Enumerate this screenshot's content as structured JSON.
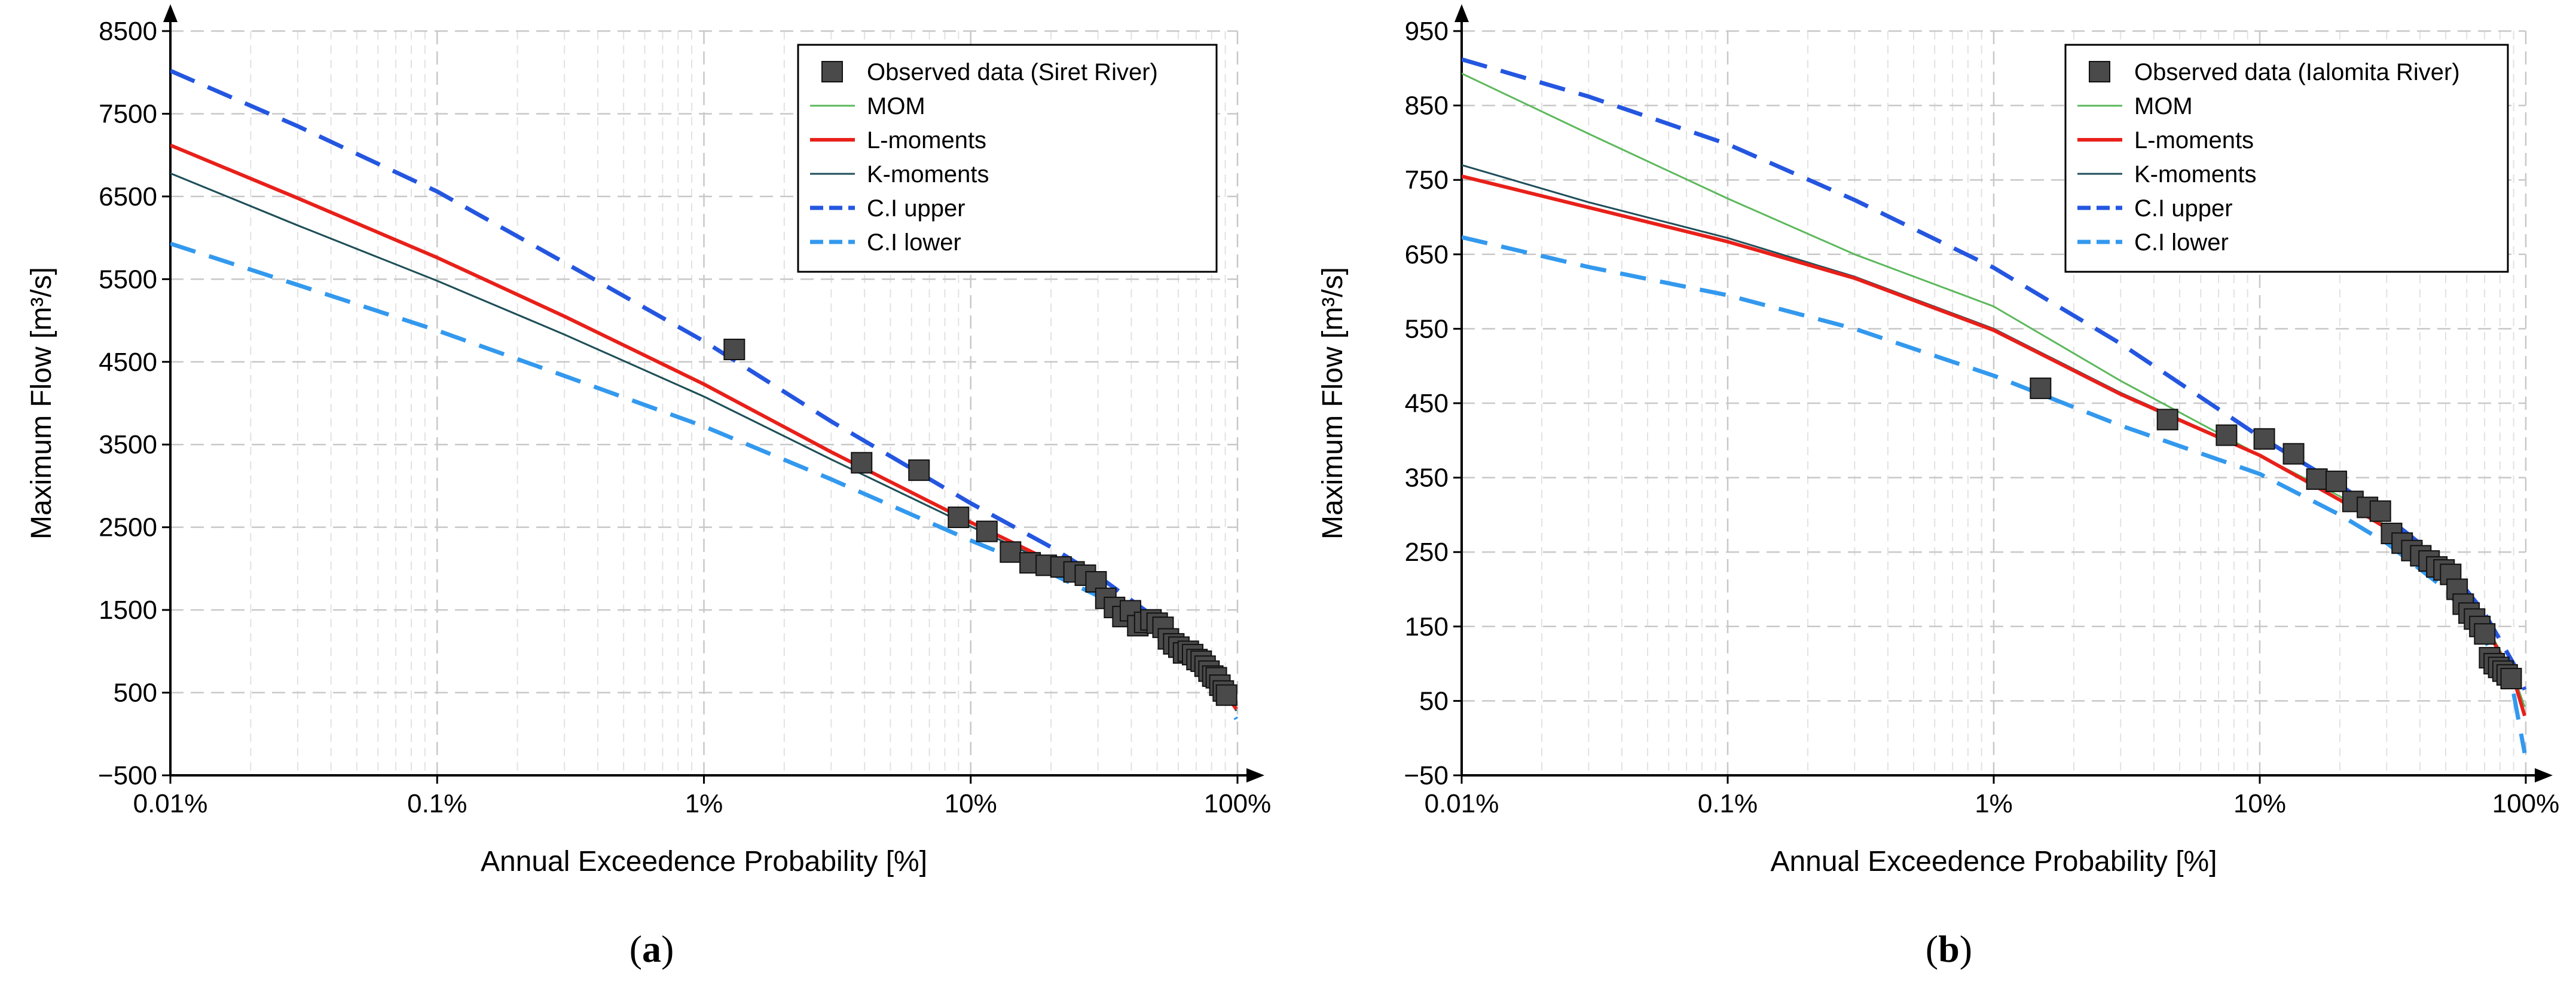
{
  "chart_data": [
    {
      "panel": "a",
      "type": "line",
      "caption": {
        "open": "(",
        "letter": "a",
        "close": ")"
      },
      "xlabel": "Annual Exceedence Probability [%]",
      "ylabel": "Maximum Flow [m³/s]",
      "x_scale": "log",
      "xlim": [
        0.01,
        100
      ],
      "ylim": [
        -500,
        8500
      ],
      "x_ticks": [
        {
          "value": 0.01,
          "label": "0.01%"
        },
        {
          "value": 0.1,
          "label": "0.1%"
        },
        {
          "value": 1,
          "label": "1%"
        },
        {
          "value": 10,
          "label": "10%"
        },
        {
          "value": 100,
          "label": "100%"
        }
      ],
      "y_ticks": [
        {
          "value": 8500,
          "label": "8500"
        },
        {
          "value": 7500,
          "label": "7500"
        },
        {
          "value": 6500,
          "label": "6500"
        },
        {
          "value": 5500,
          "label": "5500"
        },
        {
          "value": 4500,
          "label": "4500"
        },
        {
          "value": 3500,
          "label": "3500"
        },
        {
          "value": 2500,
          "label": "2500"
        },
        {
          "value": 1500,
          "label": "1500"
        },
        {
          "value": 500,
          "label": "500"
        },
        {
          "value": -500,
          "label": "−500"
        }
      ],
      "grid": true,
      "legend_position": "top-right",
      "series": [
        {
          "name": "Observed data (Siret River)",
          "kind": "markers",
          "color": "#4a4a4a",
          "x": [
            1.3,
            3.9,
            6.4,
            9.0,
            11.5,
            14.1,
            16.7,
            19.2,
            21.8,
            24.4,
            26.9,
            29.5,
            32.1,
            34.6,
            37.2,
            39.7,
            42.3,
            44.9,
            47.4,
            50.0,
            52.6,
            55.1,
            57.7,
            60.3,
            62.8,
            65.4,
            67.9,
            70.5,
            73.1,
            75.6,
            78.2,
            80.8,
            83.3,
            85.9,
            88.5,
            91.0
          ],
          "values": [
            4650,
            3280,
            3190,
            2620,
            2450,
            2200,
            2070,
            2040,
            2020,
            1960,
            1920,
            1840,
            1640,
            1530,
            1420,
            1490,
            1310,
            1350,
            1380,
            1340,
            1290,
            1150,
            1090,
            1050,
            980,
            1000,
            960,
            900,
            880,
            820,
            760,
            700,
            680,
            590,
            520,
            470
          ]
        },
        {
          "name": "MOM",
          "kind": "line",
          "color": "#5cb85c",
          "dash": "solid",
          "x": [
            0.01,
            0.03,
            0.1,
            0.3,
            1,
            3,
            10,
            20,
            30,
            50,
            70,
            90,
            99
          ],
          "values": [
            6780,
            6150,
            5480,
            4830,
            4080,
            3320,
            2510,
            2060,
            1760,
            1280,
            870,
            480,
            280
          ]
        },
        {
          "name": "L-moments",
          "kind": "line",
          "color": "#e8201a",
          "dash": "solid",
          "x": [
            0.01,
            0.03,
            0.1,
            0.3,
            1,
            3,
            10,
            20,
            30,
            50,
            70,
            90,
            99
          ],
          "values": [
            7120,
            6480,
            5760,
            5050,
            4230,
            3410,
            2560,
            2090,
            1780,
            1290,
            880,
            490,
            300
          ]
        },
        {
          "name": "K-moments",
          "kind": "line",
          "color": "#1f4e5a",
          "dash": "solid",
          "x": [
            0.01,
            0.03,
            0.1,
            0.3,
            1,
            3,
            10,
            20,
            30,
            50,
            70,
            90,
            99
          ],
          "values": [
            6780,
            6150,
            5480,
            4830,
            4080,
            3320,
            2510,
            2060,
            1760,
            1280,
            870,
            480,
            280
          ]
        },
        {
          "name": "C.I upper",
          "kind": "line",
          "color": "#2456e0",
          "dash": "dashed",
          "x": [
            0.01,
            0.03,
            0.1,
            0.3,
            1,
            3,
            10,
            20,
            30,
            50,
            70,
            90,
            99
          ],
          "values": [
            8020,
            7350,
            6560,
            5700,
            4750,
            3780,
            2790,
            2260,
            1910,
            1390,
            950,
            560,
            380
          ]
        },
        {
          "name": "C.I lower",
          "kind": "line",
          "color": "#3399ee",
          "dash": "dashed",
          "x": [
            0.01,
            0.03,
            0.1,
            0.3,
            1,
            3,
            10,
            20,
            30,
            50,
            70,
            90,
            99
          ],
          "values": [
            5930,
            5430,
            4880,
            4330,
            3720,
            3080,
            2340,
            1940,
            1670,
            1210,
            810,
            410,
            180
          ]
        }
      ]
    },
    {
      "panel": "b",
      "type": "line",
      "caption": {
        "open": "(",
        "letter": "b",
        "close": ")"
      },
      "xlabel": "Annual Exceedence Probability [%]",
      "ylabel": "Maximum Flow [m³/s]",
      "x_scale": "log",
      "xlim": [
        0.01,
        100
      ],
      "ylim": [
        -50,
        950
      ],
      "x_ticks": [
        {
          "value": 0.01,
          "label": "0.01%"
        },
        {
          "value": 0.1,
          "label": "0.1%"
        },
        {
          "value": 1,
          "label": "1%"
        },
        {
          "value": 10,
          "label": "10%"
        },
        {
          "value": 100,
          "label": "100%"
        }
      ],
      "y_ticks": [
        {
          "value": 950,
          "label": "950"
        },
        {
          "value": 850,
          "label": "850"
        },
        {
          "value": 750,
          "label": "750"
        },
        {
          "value": 650,
          "label": "650"
        },
        {
          "value": 550,
          "label": "550"
        },
        {
          "value": 450,
          "label": "450"
        },
        {
          "value": 350,
          "label": "350"
        },
        {
          "value": 250,
          "label": "250"
        },
        {
          "value": 150,
          "label": "150"
        },
        {
          "value": 50,
          "label": "50"
        },
        {
          "value": -50,
          "label": "−50"
        }
      ],
      "grid": true,
      "legend_position": "top-right",
      "series": [
        {
          "name": "Observed data (Ialomita River)",
          "kind": "markers",
          "color": "#4a4a4a",
          "x": [
            1.5,
            4.5,
            7.5,
            10.4,
            13.4,
            16.4,
            19.4,
            22.4,
            25.4,
            28.4,
            31.3,
            34.3,
            37.3,
            40.3,
            43.3,
            46.3,
            49.3,
            52.2,
            55.2,
            58.2,
            61.2,
            64.2,
            67.2,
            70.1,
            73.1,
            76.1,
            79.1,
            82.1,
            85.1,
            88.1
          ],
          "values": [
            470,
            428,
            407,
            402,
            382,
            348,
            345,
            318,
            310,
            305,
            275,
            262,
            252,
            245,
            238,
            230,
            226,
            220,
            200,
            180,
            168,
            160,
            150,
            140,
            108,
            100,
            95,
            90,
            85,
            80
          ]
        },
        {
          "name": "MOM",
          "kind": "line",
          "color": "#5cb85c",
          "dash": "solid",
          "x": [
            0.01,
            0.03,
            0.1,
            0.3,
            1,
            3,
            10,
            20,
            30,
            50,
            70,
            90,
            99
          ],
          "values": [
            893,
            812,
            725,
            650,
            580,
            480,
            380,
            325,
            285,
            222,
            155,
            85,
            42
          ]
        },
        {
          "name": "L-moments",
          "kind": "line",
          "color": "#e8201a",
          "dash": "solid",
          "x": [
            0.01,
            0.03,
            0.1,
            0.3,
            1,
            3,
            10,
            20,
            30,
            50,
            70,
            90,
            99
          ],
          "values": [
            755,
            713,
            667,
            618,
            548,
            462,
            380,
            320,
            282,
            218,
            152,
            80,
            30
          ]
        },
        {
          "name": "K-moments",
          "kind": "line",
          "color": "#1f4e5a",
          "dash": "solid",
          "x": [
            0.01,
            0.03,
            0.1,
            0.3,
            1,
            3,
            10,
            20,
            30,
            50,
            70,
            90,
            99
          ],
          "values": [
            770,
            720,
            672,
            620,
            550,
            464,
            381,
            321,
            283,
            219,
            153,
            81,
            30
          ]
        },
        {
          "name": "C.I upper",
          "kind": "line",
          "color": "#2456e0",
          "dash": "dashed",
          "x": [
            0.01,
            0.03,
            0.1,
            0.3,
            1,
            3,
            10,
            20,
            30,
            50,
            70,
            90,
            99
          ],
          "values": [
            912,
            862,
            798,
            723,
            632,
            530,
            405,
            340,
            297,
            234,
            168,
            100,
            65
          ]
        },
        {
          "name": "C.I lower",
          "kind": "line",
          "color": "#3399ee",
          "dash": "dashed",
          "x": [
            0.01,
            0.03,
            0.1,
            0.3,
            1,
            3,
            10,
            20,
            30,
            50,
            70,
            90,
            99
          ],
          "values": [
            673,
            633,
            595,
            550,
            487,
            420,
            355,
            300,
            262,
            200,
            133,
            60,
            -20
          ]
        }
      ]
    }
  ]
}
